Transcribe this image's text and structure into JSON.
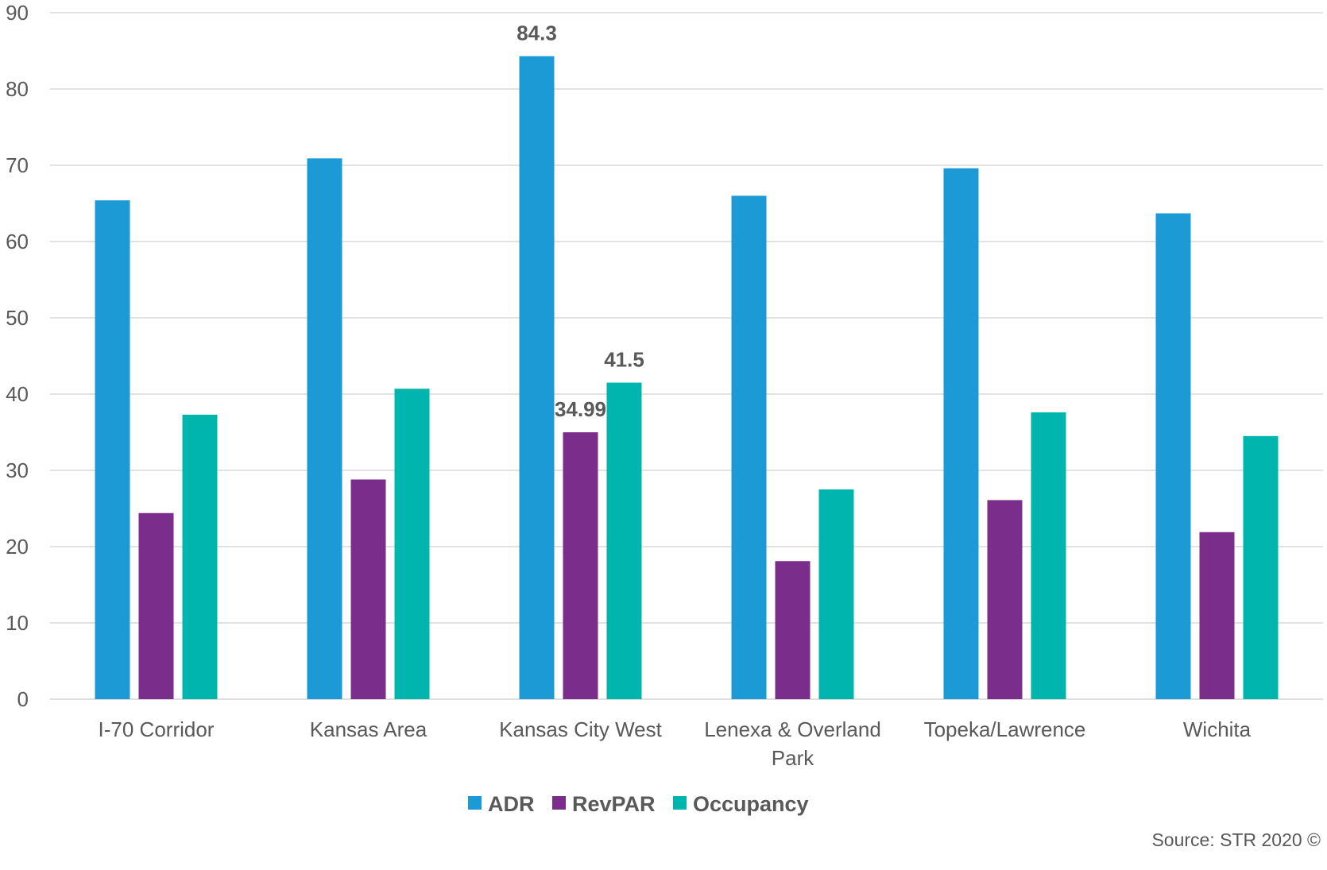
{
  "chart_data": {
    "type": "bar",
    "categories": [
      "I-70 Corridor",
      "Kansas Area",
      "Kansas City West",
      "Lenexa & Overland Park",
      "Topeka/Lawrence",
      "Wichita"
    ],
    "category_lines": [
      [
        "I-70 Corridor"
      ],
      [
        "Kansas Area"
      ],
      [
        "Kansas City West"
      ],
      [
        "Lenexa & Overland",
        "Park"
      ],
      [
        "Topeka/Lawrence"
      ],
      [
        "Wichita"
      ]
    ],
    "series": [
      {
        "name": "ADR",
        "color": "#1b9ad6",
        "values": [
          65.4,
          70.9,
          84.3,
          66.0,
          69.6,
          63.7
        ]
      },
      {
        "name": "RevPAR",
        "color": "#7b2d8b",
        "values": [
          24.4,
          28.8,
          34.99,
          18.1,
          26.1,
          21.9
        ]
      },
      {
        "name": "Occupancy",
        "color": "#00b5ad",
        "values": [
          37.3,
          40.7,
          41.5,
          27.5,
          37.6,
          34.5
        ]
      }
    ],
    "data_labels": [
      {
        "category_index": 2,
        "series_index": 0,
        "text": "84.3"
      },
      {
        "category_index": 2,
        "series_index": 1,
        "text": "34.99"
      },
      {
        "category_index": 2,
        "series_index": 2,
        "text": "41.5"
      }
    ],
    "ylim": [
      0,
      90
    ],
    "yticks": [
      0,
      10,
      20,
      30,
      40,
      50,
      60,
      70,
      80,
      90
    ],
    "grid": true,
    "legend_position": "bottom",
    "source": "Source: STR 2020 ©"
  }
}
